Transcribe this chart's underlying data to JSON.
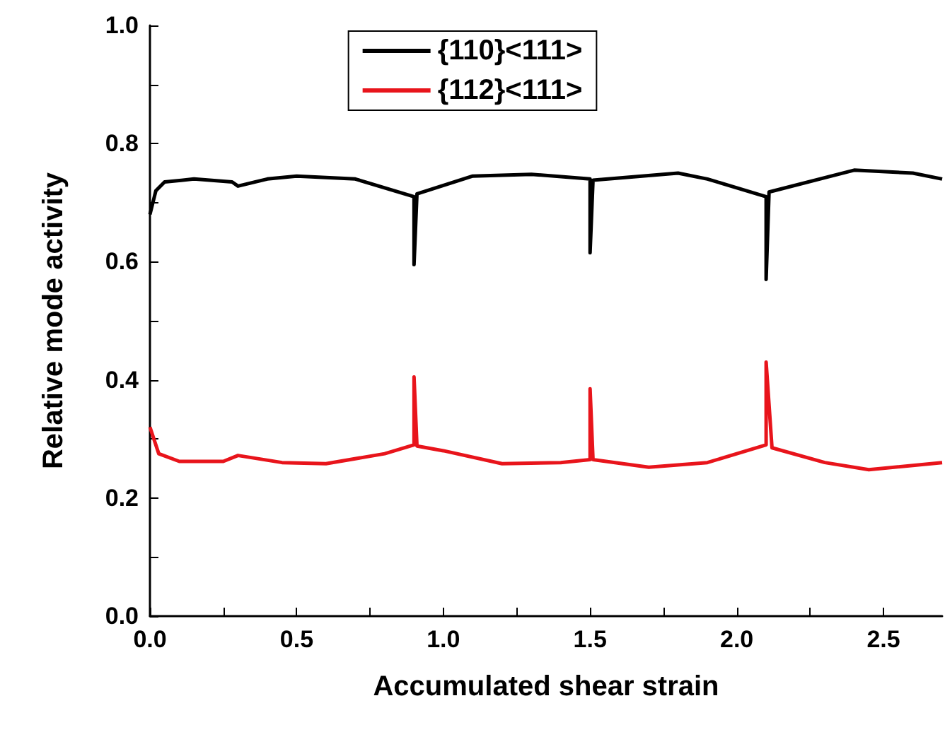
{
  "chart_data": {
    "type": "line",
    "xlabel": "Accumulated shear strain",
    "ylabel": "Relative mode activity",
    "xlim": [
      0,
      2.7
    ],
    "ylim": [
      0,
      1.0
    ],
    "xticks": [
      {
        "value": 0,
        "label": "0.0"
      },
      {
        "value": 0.25,
        "label": null
      },
      {
        "value": 0.5,
        "label": "0.5"
      },
      {
        "value": 0.75,
        "label": null
      },
      {
        "value": 1,
        "label": "1.0"
      },
      {
        "value": 1.25,
        "label": null
      },
      {
        "value": 1.5,
        "label": "1.5"
      },
      {
        "value": 1.75,
        "label": null
      },
      {
        "value": 2,
        "label": "2.0"
      },
      {
        "value": 2.25,
        "label": null
      },
      {
        "value": 2.5,
        "label": "2.5"
      }
    ],
    "yticks": [
      {
        "value": 0,
        "label": "0.0"
      },
      {
        "value": 0.1,
        "label": null
      },
      {
        "value": 0.2,
        "label": "0.2"
      },
      {
        "value": 0.3,
        "label": null
      },
      {
        "value": 0.4,
        "label": "0.4"
      },
      {
        "value": 0.5,
        "label": null
      },
      {
        "value": 0.6,
        "label": "0.6"
      },
      {
        "value": 0.7,
        "label": null
      },
      {
        "value": 0.8,
        "label": "0.8"
      },
      {
        "value": 0.9,
        "label": null
      },
      {
        "value": 1,
        "label": "1.0"
      }
    ],
    "legend": "top",
    "grid": false,
    "marker": "none",
    "line_style": "solid",
    "series": [
      {
        "name": "{110}<111>",
        "color": "#000000",
        "x": [
          0,
          0.02,
          0.05,
          0.15,
          0.28,
          0.3,
          0.4,
          0.5,
          0.7,
          0.9,
          0.9,
          0.91,
          1.1,
          1.3,
          1.5,
          1.5,
          1.51,
          1.8,
          1.9,
          2.1,
          2.1,
          2.11,
          2.4,
          2.6,
          2.7
        ],
        "values": [
          0.68,
          0.72,
          0.735,
          0.74,
          0.735,
          0.728,
          0.74,
          0.745,
          0.74,
          0.71,
          0.595,
          0.715,
          0.745,
          0.748,
          0.74,
          0.615,
          0.738,
          0.75,
          0.74,
          0.71,
          0.57,
          0.718,
          0.755,
          0.75,
          0.74
        ]
      },
      {
        "name": "{112}<111>",
        "color": "#e8141b",
        "x": [
          0,
          0.03,
          0.1,
          0.25,
          0.3,
          0.45,
          0.6,
          0.8,
          0.9,
          0.9,
          0.91,
          1.0,
          1.2,
          1.4,
          1.5,
          1.5,
          1.51,
          1.7,
          1.9,
          2.1,
          2.1,
          2.12,
          2.3,
          2.45,
          2.7
        ],
        "values": [
          0.32,
          0.275,
          0.262,
          0.262,
          0.272,
          0.26,
          0.258,
          0.275,
          0.29,
          0.405,
          0.288,
          0.28,
          0.258,
          0.26,
          0.265,
          0.385,
          0.265,
          0.252,
          0.26,
          0.29,
          0.43,
          0.285,
          0.26,
          0.248,
          0.26
        ]
      }
    ]
  }
}
